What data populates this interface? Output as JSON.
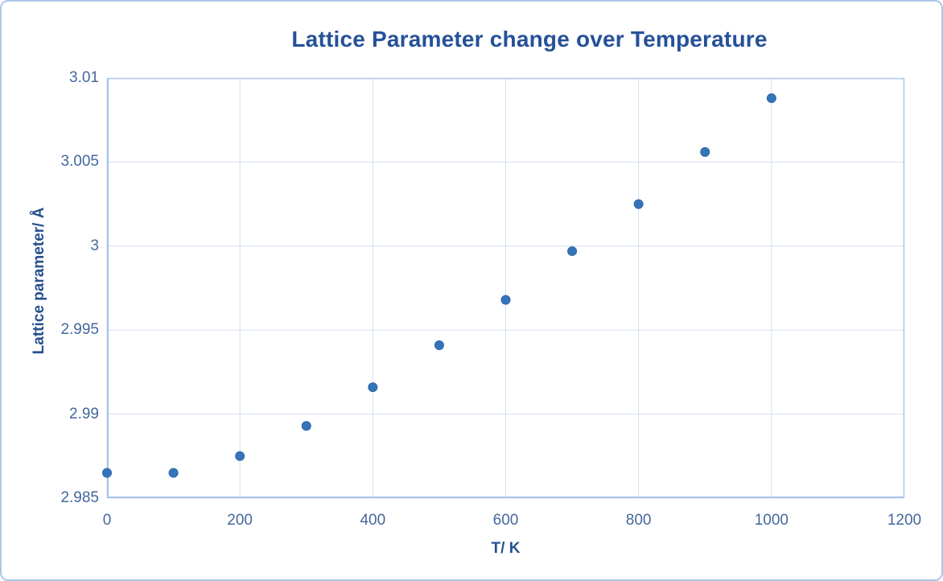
{
  "chart_data": {
    "type": "scatter",
    "title": "Lattice Parameter change over Temperature",
    "xlabel": "T/ K",
    "ylabel": "Lattice parameter/ Å",
    "xlim": [
      0,
      1200
    ],
    "ylim": [
      2.985,
      3.01
    ],
    "x_ticks": [
      "0",
      "200",
      "400",
      "600",
      "800",
      "1000",
      "1200"
    ],
    "y_ticks": [
      "2.985",
      "2.99",
      "2.995",
      "3",
      "3.005",
      "3.01"
    ],
    "grid": true,
    "legend_position": "none",
    "series": [
      {
        "name": "Lattice parameter",
        "marker": "circle",
        "x": [
          0,
          100,
          200,
          300,
          400,
          500,
          600,
          700,
          800,
          900,
          1000
        ],
        "y": [
          2.9865,
          2.9865,
          2.9875,
          2.9893,
          2.9916,
          2.9941,
          2.9968,
          2.9997,
          3.0025,
          3.0056,
          3.0088
        ]
      }
    ]
  },
  "colors": {
    "title_text": "#255199",
    "axis_title_text": "#26508F",
    "tick_text": "#44679B",
    "gridline": "#D5E0F1",
    "axis_line": "#A6C3E6",
    "plot_border": "#B9CEEA",
    "frame_border": "#AEC7E8",
    "marker_fill": "#3474BA",
    "marker_edge": "#2F66A8",
    "background": "#FFFFFF"
  }
}
